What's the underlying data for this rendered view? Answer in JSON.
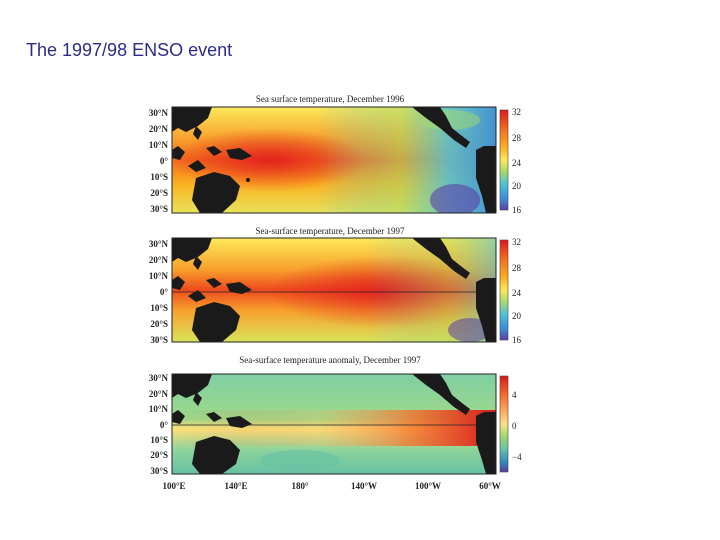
{
  "slide": {
    "title": "The 1997/98 ENSO event"
  },
  "panels": [
    {
      "title": "Sea surface temperature, December 1996",
      "lat_labels": [
        "30°N",
        "20°N",
        "10°N",
        "0°",
        "10°S",
        "20°S",
        "30°S"
      ],
      "colorbar_ticks": [
        "32",
        "28",
        "24",
        "20",
        "16"
      ],
      "colorbar_colors": [
        "#e0161c",
        "#f36a1d",
        "#fbb021",
        "#fde95a",
        "#a6d96a",
        "#4fc3d8",
        "#3a8fd9",
        "#5b3ea8"
      ]
    },
    {
      "title": "Sea-surface temperature, December 1997",
      "lat_labels": [
        "30°N",
        "20°N",
        "10°N",
        "0°",
        "10°S",
        "20°S",
        "30°S"
      ],
      "colorbar_ticks": [
        "32",
        "28",
        "24",
        "20",
        "16"
      ],
      "colorbar_colors": [
        "#e0161c",
        "#f36a1d",
        "#fbb021",
        "#fde95a",
        "#a6d96a",
        "#4fc3d8",
        "#3a8fd9",
        "#5b3ea8"
      ]
    },
    {
      "title": "Sea-surface temperature anomaly, December 1997",
      "lat_labels": [
        "30°N",
        "20°N",
        "10°N",
        "0°",
        "10°S",
        "20°S",
        "30°S"
      ],
      "colorbar_ticks": [
        "4",
        "0",
        "−4"
      ],
      "colorbar_colors": [
        "#d7191c",
        "#f46d2a",
        "#fdae61",
        "#fee08b",
        "#a6d96a",
        "#66c2a5",
        "#3288bd",
        "#5e3c99"
      ]
    }
  ],
  "lon_labels": [
    "100°E",
    "140°E",
    "180°",
    "140°W",
    "100°W",
    "60°W"
  ],
  "colors": {
    "title": "#2b2b8f",
    "land": "#1a1a1a"
  }
}
